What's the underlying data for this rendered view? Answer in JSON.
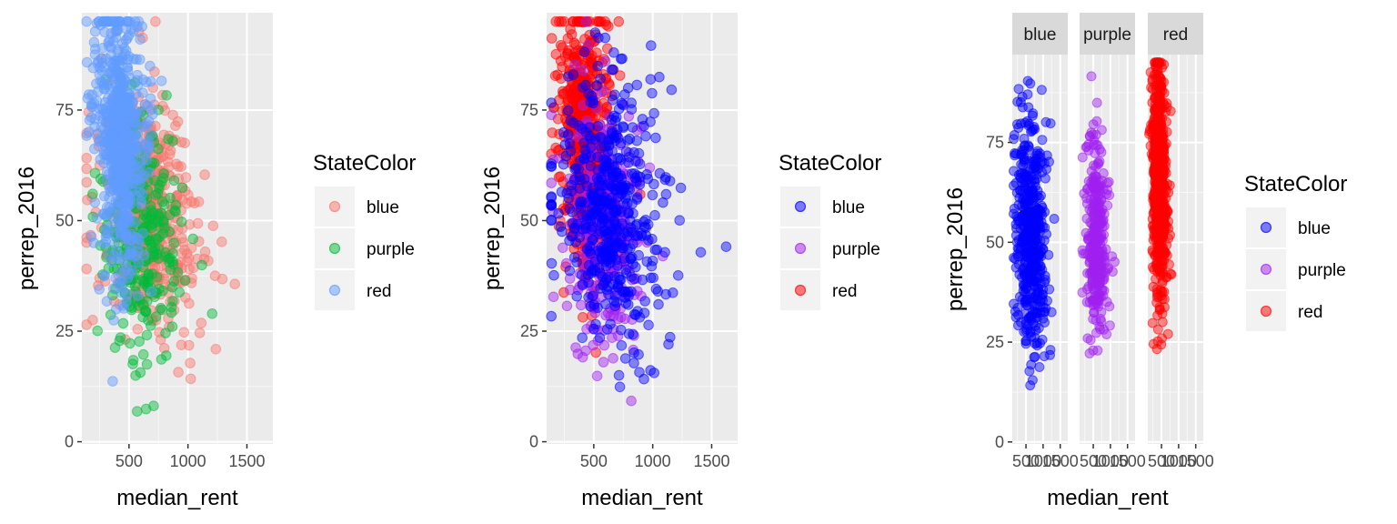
{
  "chart_data": [
    {
      "type": "scatter",
      "panel": "left",
      "xlabel": "median_rent",
      "ylabel": "perrep_2016",
      "xticks": [
        500,
        1000,
        1500
      ],
      "yticks": [
        0,
        25,
        50,
        75
      ],
      "xlim": [
        100,
        1720
      ],
      "ylim": [
        -0.5,
        97
      ],
      "grid": true,
      "point_alpha": 0.5,
      "legend": {
        "title": "StateColor",
        "placement": "right",
        "entries": [
          {
            "label": "blue",
            "color": "#F8766D"
          },
          {
            "label": "purple",
            "color": "#00BA38"
          },
          {
            "label": "red",
            "color": "#619CFF"
          }
        ]
      },
      "series": [
        {
          "group": "blue",
          "color": "#F8766D",
          "center": [
            650,
            52
          ],
          "spread": [
            220,
            13
          ],
          "n": 480,
          "trend": -0.012
        },
        {
          "group": "purple",
          "color": "#00BA38",
          "center": [
            590,
            48
          ],
          "spread": [
            180,
            14
          ],
          "n": 320,
          "trend": -0.012
        },
        {
          "group": "red",
          "color": "#619CFF",
          "center": [
            430,
            68
          ],
          "spread": [
            110,
            15
          ],
          "n": 620,
          "trend": -0.03
        }
      ]
    },
    {
      "type": "scatter",
      "panel": "middle",
      "xlabel": "median_rent",
      "ylabel": "perrep_2016",
      "xticks": [
        500,
        1000,
        1500
      ],
      "yticks": [
        0,
        25,
        50,
        75
      ],
      "xlim": [
        100,
        1720
      ],
      "ylim": [
        -0.5,
        97
      ],
      "grid": true,
      "point_alpha": 0.5,
      "legend": {
        "title": "StateColor",
        "placement": "right",
        "entries": [
          {
            "label": "blue",
            "color": "#0000FF"
          },
          {
            "label": "purple",
            "color": "#A020F0"
          },
          {
            "label": "red",
            "color": "#FF0000"
          }
        ]
      },
      "series": [
        {
          "group": "red",
          "color": "#FF0000",
          "center": [
            430,
            68
          ],
          "spread": [
            110,
            15
          ],
          "n": 620,
          "trend": -0.03
        },
        {
          "group": "purple",
          "color": "#A020F0",
          "center": [
            590,
            50
          ],
          "spread": [
            170,
            14
          ],
          "n": 320,
          "trend": -0.012
        },
        {
          "group": "blue",
          "color": "#0000FF",
          "center": [
            640,
            52
          ],
          "spread": [
            230,
            14
          ],
          "n": 480,
          "trend": -0.012
        }
      ]
    },
    {
      "type": "scatter",
      "panel": "right-facets",
      "xlabel": "median_rent",
      "ylabel": "perrep_2016",
      "xticks": [
        500,
        1000,
        1500
      ],
      "xtick_labels": [
        "500",
        "1000",
        "1500"
      ],
      "yticks": [
        0,
        25,
        50,
        75
      ],
      "xlim": [
        100,
        1720
      ],
      "ylim": [
        -0.5,
        97
      ],
      "grid": true,
      "point_alpha": 0.5,
      "legend": {
        "title": "StateColor",
        "placement": "right",
        "entries": [
          {
            "label": "blue",
            "color": "#0000FF"
          },
          {
            "label": "purple",
            "color": "#A020F0"
          },
          {
            "label": "red",
            "color": "#FF0000"
          }
        ]
      },
      "facets": [
        {
          "strip": "blue",
          "color": "#0000FF",
          "center": [
            640,
            52
          ],
          "spread": [
            230,
            14
          ],
          "n": 480,
          "trend": -0.012
        },
        {
          "strip": "purple",
          "color": "#A020F0",
          "center": [
            590,
            50
          ],
          "spread": [
            170,
            14
          ],
          "n": 320,
          "trend": -0.012
        },
        {
          "strip": "red",
          "color": "#FF0000",
          "center": [
            430,
            66
          ],
          "spread": [
            110,
            15
          ],
          "n": 620,
          "trend": -0.03
        }
      ]
    }
  ]
}
